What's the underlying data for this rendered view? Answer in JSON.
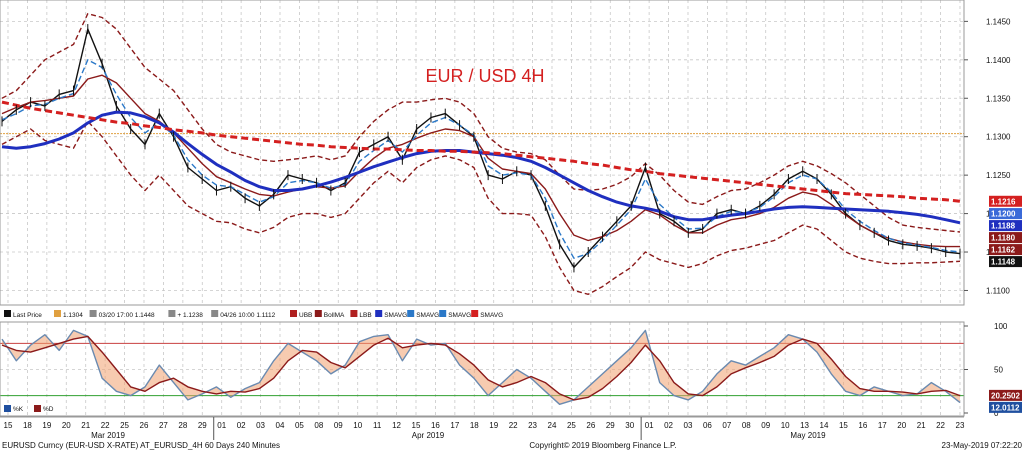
{
  "chart_data": [
    {
      "type": "line",
      "title": "EUR / USD 4H",
      "ylim": [
        1.1085,
        1.147
      ],
      "y_ticks": [
        "1.1100",
        "1.1150",
        "1.1200",
        "1.1250",
        "1.1300",
        "1.1350",
        "1.1400",
        "1.1450"
      ],
      "grid": true,
      "reference_line": {
        "label": "1.1304",
        "value": 1.1304,
        "color": "#e0a040"
      },
      "price_tags": [
        {
          "label": "1.1216",
          "value": 1.1216,
          "color": "#d42020",
          "text_color": "#ffffff"
        },
        {
          "label": "1.1200",
          "value": 1.12,
          "color": "#3a6ad8",
          "text_color": "#ffffff"
        },
        {
          "label": "1.1188",
          "value": 1.1188,
          "color": "#1f2fbf",
          "text_color": "#ffffff"
        },
        {
          "label": "1.1180",
          "value": 1.118,
          "color": "#8b1a1a",
          "text_color": "#ffffff"
        },
        {
          "label": "1.1162",
          "value": 1.1162,
          "color": "#8b1a1a",
          "text_color": "#ffffff"
        },
        {
          "label": "1.1148",
          "value": 1.1148,
          "color": "#111111",
          "text_color": "#ffffff"
        }
      ],
      "series": [
        {
          "name": "Last Price",
          "color": "#111111",
          "values": [
            1.132,
            1.1335,
            1.1345,
            1.134,
            1.1355,
            1.136,
            1.144,
            1.1395,
            1.134,
            1.131,
            1.129,
            1.133,
            1.13,
            1.126,
            1.1245,
            1.123,
            1.1235,
            1.122,
            1.121,
            1.1225,
            1.125,
            1.1245,
            1.124,
            1.123,
            1.124,
            1.128,
            1.129,
            1.13,
            1.127,
            1.131,
            1.1325,
            1.133,
            1.1315,
            1.13,
            1.125,
            1.1245,
            1.1255,
            1.125,
            1.121,
            1.116,
            1.113,
            1.115,
            1.117,
            1.119,
            1.121,
            1.126,
            1.12,
            1.119,
            1.1175,
            1.118,
            1.12,
            1.1205,
            1.12,
            1.121,
            1.1225,
            1.1245,
            1.1255,
            1.1245,
            1.1225,
            1.12,
            1.1185,
            1.1175,
            1.1165,
            1.116,
            1.1158,
            1.1155,
            1.115,
            1.1148
          ]
        },
        {
          "name": "UBB",
          "color": "#8b1a1a",
          "dash": "5,3",
          "values": [
            1.135,
            1.136,
            1.138,
            1.14,
            1.141,
            1.142,
            1.146,
            1.1455,
            1.144,
            1.1415,
            1.139,
            1.1375,
            1.136,
            1.1335,
            1.131,
            1.129,
            1.128,
            1.1275,
            1.127,
            1.1268,
            1.127,
            1.1272,
            1.1275,
            1.127,
            1.1275,
            1.13,
            1.132,
            1.1335,
            1.1345,
            1.1345,
            1.1348,
            1.135,
            1.1345,
            1.133,
            1.13,
            1.1285,
            1.128,
            1.1278,
            1.127,
            1.125,
            1.1232,
            1.123,
            1.1232,
            1.1238,
            1.1248,
            1.1265,
            1.125,
            1.123,
            1.1215,
            1.1212,
            1.1222,
            1.123,
            1.1232,
            1.124,
            1.125,
            1.1262,
            1.1268,
            1.1262,
            1.1252,
            1.124,
            1.1225,
            1.121,
            1.1195,
            1.1185,
            1.1182,
            1.118,
            1.1178,
            1.1176
          ]
        },
        {
          "name": "LBB",
          "color": "#8b1a1a",
          "dash": "5,3",
          "values": [
            1.129,
            1.13,
            1.131,
            1.1295,
            1.129,
            1.1285,
            1.132,
            1.13,
            1.1275,
            1.125,
            1.123,
            1.125,
            1.123,
            1.121,
            1.12,
            1.119,
            1.1188,
            1.118,
            1.1175,
            1.1182,
            1.1195,
            1.12,
            1.12,
            1.1195,
            1.12,
            1.122,
            1.124,
            1.1255,
            1.124,
            1.126,
            1.127,
            1.1275,
            1.127,
            1.126,
            1.122,
            1.12,
            1.12,
            1.1198,
            1.117,
            1.113,
            1.11,
            1.1095,
            1.1105,
            1.1118,
            1.113,
            1.115,
            1.114,
            1.1135,
            1.113,
            1.1135,
            1.1145,
            1.1152,
            1.1155,
            1.116,
            1.1165,
            1.1175,
            1.1185,
            1.118,
            1.1165,
            1.115,
            1.1142,
            1.1138,
            1.1135,
            1.1135,
            1.1136,
            1.1136,
            1.1137,
            1.1138
          ]
        },
        {
          "name": "BollMA",
          "color": "#8b1a1a",
          "values": [
            1.133,
            1.1338,
            1.1345,
            1.1347,
            1.135,
            1.1353,
            1.1375,
            1.138,
            1.137,
            1.135,
            1.133,
            1.132,
            1.1305,
            1.1285,
            1.1265,
            1.1248,
            1.124,
            1.1232,
            1.1225,
            1.1223,
            1.1228,
            1.1232,
            1.1235,
            1.1233,
            1.1236,
            1.1255,
            1.1272,
            1.1285,
            1.129,
            1.1298,
            1.1305,
            1.131,
            1.1308,
            1.13,
            1.1272,
            1.1258,
            1.1255,
            1.1252,
            1.1232,
            1.12,
            1.1172,
            1.1165,
            1.117,
            1.1178,
            1.119,
            1.1205,
            1.1198,
            1.1185,
            1.1175,
            1.1175,
            1.1185,
            1.1192,
            1.1195,
            1.12,
            1.1208,
            1.122,
            1.1228,
            1.1224,
            1.1212,
            1.1198,
            1.1185,
            1.1175,
            1.1168,
            1.1163,
            1.116,
            1.1158,
            1.1157,
            1.1157
          ]
        },
        {
          "name": "SMAVG (fast)",
          "color": "#2a78c8",
          "dash": "6,3",
          "values": [
            1.1322,
            1.133,
            1.134,
            1.1342,
            1.135,
            1.1356,
            1.14,
            1.139,
            1.1355,
            1.1325,
            1.1305,
            1.1318,
            1.1302,
            1.127,
            1.125,
            1.1237,
            1.1235,
            1.1225,
            1.1215,
            1.1222,
            1.124,
            1.1243,
            1.124,
            1.1233,
            1.1238,
            1.1268,
            1.1282,
            1.1295,
            1.128,
            1.1302,
            1.1318,
            1.1325,
            1.1315,
            1.1302,
            1.1262,
            1.125,
            1.1253,
            1.125,
            1.122,
            1.1175,
            1.1142,
            1.1148,
            1.1165,
            1.1185,
            1.1205,
            1.1245,
            1.1212,
            1.1195,
            1.118,
            1.1181,
            1.1196,
            1.1203,
            1.1201,
            1.1208,
            1.1222,
            1.124,
            1.125,
            1.1245,
            1.1228,
            1.1205,
            1.119,
            1.1178,
            1.1168,
            1.1162,
            1.1159,
            1.1156,
            1.1152,
            1.115
          ]
        },
        {
          "name": "SMAVG (slow)",
          "color": "#1f2fbf",
          "width": 3,
          "values": [
            1.1287,
            1.1285,
            1.1287,
            1.1291,
            1.1297,
            1.1305,
            1.1318,
            1.1328,
            1.1332,
            1.1331,
            1.1326,
            1.1318,
            1.1306,
            1.1291,
            1.1277,
            1.1264,
            1.1254,
            1.1243,
            1.1235,
            1.123,
            1.123,
            1.1232,
            1.1236,
            1.1241,
            1.1247,
            1.1254,
            1.1261,
            1.1267,
            1.1273,
            1.1278,
            1.1281,
            1.1282,
            1.1282,
            1.128,
            1.1278,
            1.1276,
            1.1273,
            1.1268,
            1.126,
            1.125,
            1.124,
            1.123,
            1.1222,
            1.1215,
            1.121,
            1.1207,
            1.1203,
            1.1196,
            1.1192,
            1.1192,
            1.1195,
            1.1198,
            1.12,
            1.1203,
            1.1206,
            1.1208,
            1.1209,
            1.1208,
            1.1207,
            1.1206,
            1.1205,
            1.1204,
            1.1203,
            1.1201,
            1.1199,
            1.1196,
            1.1192,
            1.1188
          ]
        },
        {
          "name": "SMAVG (200)",
          "color": "#d42020",
          "dash": "7,4",
          "width": 3,
          "values": [
            1.1345,
            1.1341,
            1.1337,
            1.1334,
            1.1331,
            1.1328,
            1.1325,
            1.1322,
            1.1319,
            1.1317,
            1.1314,
            1.1312,
            1.1309,
            1.1307,
            1.1305,
            1.1302,
            1.13,
            1.1298,
            1.1296,
            1.1294,
            1.1292,
            1.129,
            1.1289,
            1.1287,
            1.1286,
            1.1285,
            1.1284,
            1.1284,
            1.1283,
            1.1282,
            1.1282,
            1.1281,
            1.1281,
            1.128,
            1.1279,
            1.1278,
            1.1276,
            1.1274,
            1.1272,
            1.127,
            1.1268,
            1.1265,
            1.1263,
            1.126,
            1.1257,
            1.1255,
            1.1252,
            1.125,
            1.1248,
            1.1246,
            1.1244,
            1.1242,
            1.124,
            1.1238,
            1.1236,
            1.1234,
            1.1232,
            1.123,
            1.1228,
            1.1226,
            1.1225,
            1.1224,
            1.1223,
            1.1222,
            1.122,
            1.1219,
            1.1218,
            1.1216
          ]
        }
      ],
      "legend": [
        {
          "label": "Last Price",
          "color": "#111111"
        },
        {
          "label": "1.1304",
          "color": "#e0a040"
        },
        {
          "label": "03/20 17:00 1.1448",
          "color": "#888888"
        },
        {
          "label": "+ 1.1238",
          "color": "#888888"
        },
        {
          "label": "04/26 10:00 1.1112",
          "color": "#888888"
        },
        {
          "label": "UBB",
          "color": "#b02020"
        },
        {
          "label": "BollMA",
          "color": "#8b1a1a"
        },
        {
          "label": "LBB",
          "color": "#b02020"
        },
        {
          "label": "SMAVG",
          "color": "#1f2fbf"
        },
        {
          "label": "SMAVG",
          "color": "#2a78c8"
        },
        {
          "label": "SMAVG",
          "color": "#2a78c8"
        },
        {
          "label": "SMAVG",
          "color": "#d42020"
        }
      ]
    },
    {
      "type": "line",
      "ylim": [
        0,
        100
      ],
      "y_ticks": [
        "100",
        "50",
        "0"
      ],
      "ref_lines": [
        {
          "value": 80,
          "color": "#c84040"
        },
        {
          "value": 20,
          "color": "#30a030"
        }
      ],
      "price_tags": [
        {
          "label": "20.2502",
          "value": 20.2502,
          "color": "#8b1a1a",
          "text_color": "#ffffff"
        },
        {
          "label": "12.0112",
          "value": 12.0112,
          "color": "#1f4f9f",
          "text_color": "#ffffff"
        }
      ],
      "legend": [
        {
          "label": "%K",
          "color": "#1f4f9f"
        },
        {
          "label": "%D",
          "color": "#8b1a1a"
        }
      ],
      "series": [
        {
          "name": "%K",
          "color": "#6a8ab0",
          "values": [
            85,
            60,
            78,
            90,
            72,
            95,
            88,
            40,
            25,
            20,
            30,
            55,
            35,
            15,
            22,
            30,
            18,
            28,
            35,
            60,
            80,
            70,
            60,
            45,
            55,
            82,
            88,
            90,
            60,
            85,
            78,
            80,
            55,
            40,
            20,
            35,
            50,
            40,
            25,
            10,
            15,
            30,
            45,
            60,
            75,
            95,
            35,
            20,
            15,
            25,
            45,
            60,
            55,
            65,
            75,
            90,
            85,
            70,
            45,
            25,
            20,
            30,
            25,
            20,
            22,
            35,
            25,
            12
          ]
        },
        {
          "name": "%D",
          "color": "#8b1a1a",
          "values": [
            78,
            72,
            70,
            75,
            80,
            85,
            88,
            70,
            50,
            30,
            25,
            35,
            40,
            30,
            25,
            22,
            25,
            24,
            28,
            40,
            60,
            72,
            70,
            58,
            52,
            65,
            78,
            86,
            75,
            78,
            80,
            78,
            68,
            55,
            38,
            30,
            35,
            42,
            35,
            22,
            15,
            18,
            28,
            42,
            58,
            78,
            60,
            35,
            22,
            20,
            30,
            45,
            52,
            58,
            65,
            78,
            85,
            80,
            62,
            42,
            28,
            25,
            25,
            24,
            22,
            25,
            26,
            20
          ]
        }
      ]
    }
  ],
  "x_axis": {
    "days": [
      "15",
      "18",
      "19",
      "20",
      "21",
      "22",
      "25",
      "26",
      "27",
      "28",
      "29",
      "01",
      "02",
      "03",
      "04",
      "05",
      "08",
      "09",
      "10",
      "11",
      "12",
      "15",
      "16",
      "17",
      "18",
      "19",
      "22",
      "23",
      "24",
      "25",
      "26",
      "29",
      "30",
      "01",
      "02",
      "03",
      "06",
      "07",
      "08",
      "09",
      "10",
      "13",
      "14",
      "15",
      "16",
      "17",
      "20",
      "21",
      "22",
      "23"
    ],
    "months": [
      "Mar 2019",
      "Apr 2019",
      "May 2019"
    ]
  },
  "footer": {
    "left": "EURUSD Curncy (EUR-USD X-RATE) AT_EURUSD_4H 60 Days 240 Minutes",
    "center": "Copyright© 2019 Bloomberg Finance L.P.",
    "right": "23-May-2019 07:22:20"
  }
}
